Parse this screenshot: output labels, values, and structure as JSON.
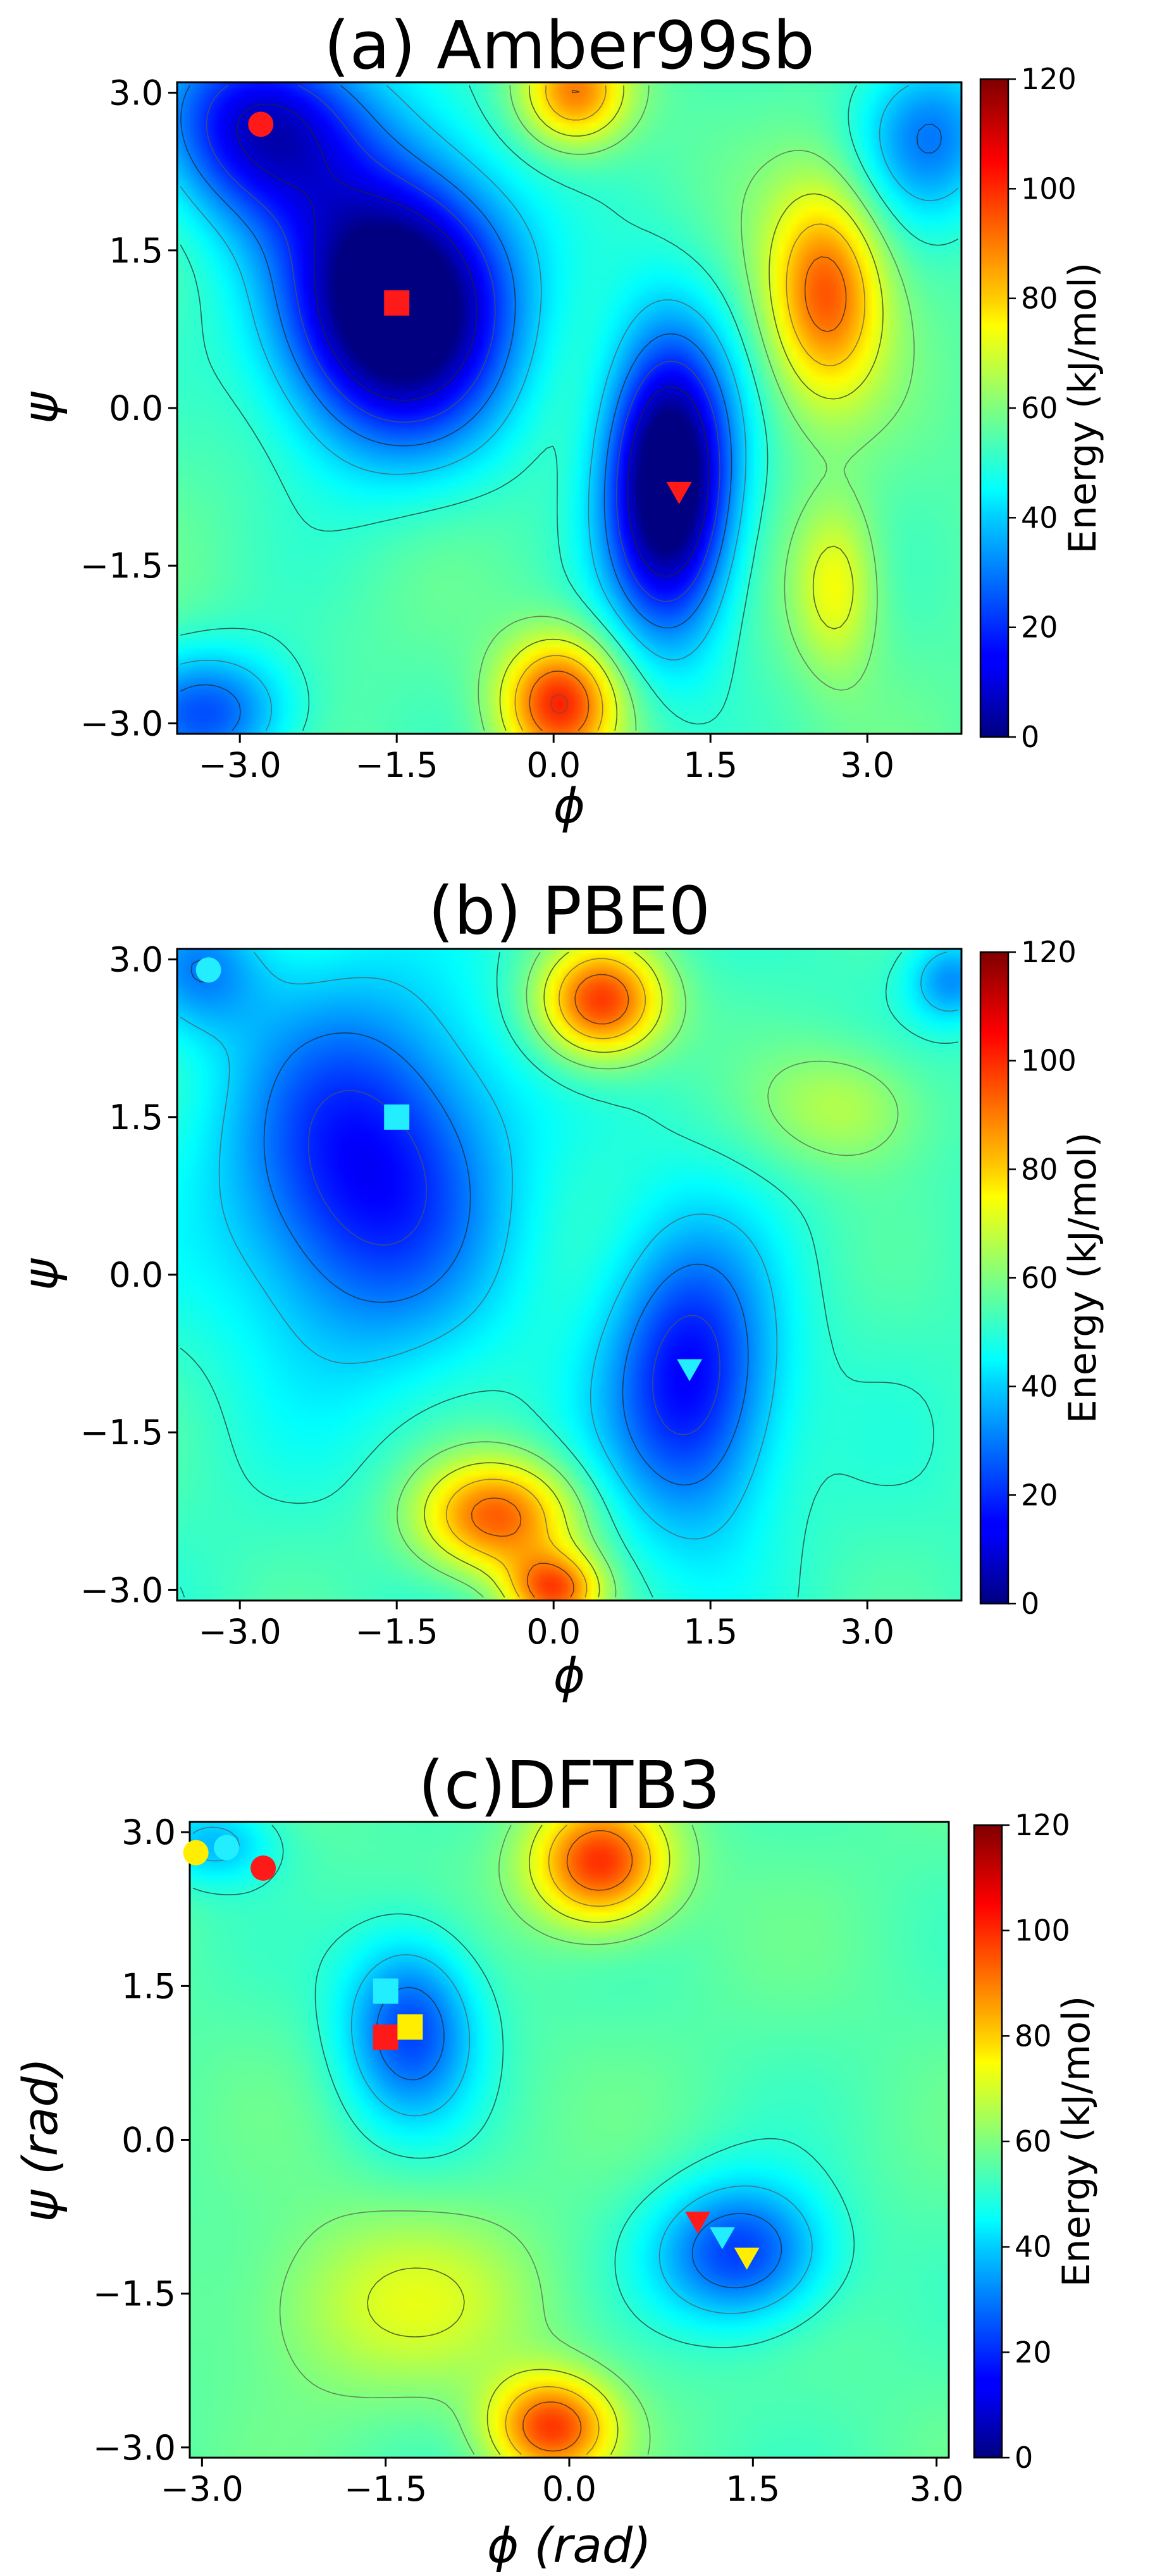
{
  "chart_data": [
    {
      "type": "heatmap",
      "title": "(a) Amber99sb",
      "xlabel": "ϕ",
      "ylabel": "ψ",
      "x_ticks": [
        "−3.0",
        "−1.5",
        "0.0",
        "1.5",
        "3.0"
      ],
      "y_ticks": [
        "3.0",
        "1.5",
        "0.0",
        "−1.5",
        "−3.0"
      ],
      "x_tick_values": [
        -3.0,
        -1.5,
        0.0,
        1.5,
        3.0
      ],
      "y_tick_values": [
        3.0,
        1.5,
        0.0,
        -1.5,
        -3.0
      ],
      "xlim": [
        -3.6,
        3.9
      ],
      "ylim": [
        -3.1,
        3.1
      ],
      "colorbar": {
        "label": "Energy (kJ/mol)",
        "ticks": [
          "0",
          "20",
          "40",
          "60",
          "80",
          "100",
          "120"
        ],
        "range": [
          0,
          120
        ]
      },
      "energy_wells": [
        {
          "phi": -1.5,
          "psi": 1.0,
          "depth": 72,
          "sx": 1.1,
          "sy": 1.3
        },
        {
          "phi": -2.8,
          "psi": 2.7,
          "depth": 45,
          "sx": 1.0,
          "sy": 0.9
        },
        {
          "phi": 1.1,
          "psi": -0.7,
          "depth": 68,
          "sx": 0.6,
          "sy": 1.4
        },
        {
          "phi": -3.3,
          "psi": -2.9,
          "depth": 30,
          "sx": 0.8,
          "sy": 0.6
        },
        {
          "phi": 3.6,
          "psi": 2.6,
          "depth": 25,
          "sx": 0.7,
          "sy": 0.8
        }
      ],
      "energy_peaks": [
        {
          "phi": 2.6,
          "psi": 1.1,
          "height": 40,
          "sx": 0.55,
          "sy": 1.0
        },
        {
          "phi": 0.05,
          "psi": -2.8,
          "height": 45,
          "sx": 0.55,
          "sy": 0.6
        },
        {
          "phi": 0.2,
          "psi": 3.0,
          "height": 35,
          "sx": 0.5,
          "sy": 0.5
        },
        {
          "phi": 2.7,
          "psi": -1.7,
          "height": 20,
          "sx": 0.4,
          "sy": 0.8
        }
      ],
      "baseline": 55,
      "markers": [
        {
          "shape": "circle",
          "color": "#ff1a1a",
          "phi": -2.8,
          "psi": 2.7
        },
        {
          "shape": "square",
          "color": "#ff1a1a",
          "phi": -1.5,
          "psi": 1.0
        },
        {
          "shape": "triangle",
          "color": "#ff1a1a",
          "phi": 1.2,
          "psi": -0.8
        }
      ]
    },
    {
      "type": "heatmap",
      "title": "(b) PBE0",
      "xlabel": "ϕ",
      "ylabel": "ψ",
      "x_ticks": [
        "−3.0",
        "−1.5",
        "0.0",
        "1.5",
        "3.0"
      ],
      "y_ticks": [
        "3.0",
        "1.5",
        "0.0",
        "−1.5",
        "−3.0"
      ],
      "x_tick_values": [
        -3.0,
        -1.5,
        0.0,
        1.5,
        3.0
      ],
      "y_tick_values": [
        3.0,
        1.5,
        0.0,
        -1.5,
        -3.0
      ],
      "xlim": [
        -3.6,
        3.9
      ],
      "ylim": [
        -3.1,
        3.1
      ],
      "colorbar": {
        "label": "Energy (kJ/mol)",
        "ticks": [
          "0",
          "20",
          "40",
          "60",
          "80",
          "100",
          "120"
        ],
        "range": [
          0,
          120
        ]
      },
      "energy_wells": [
        {
          "phi": -1.8,
          "psi": 1.0,
          "depth": 38,
          "sx": 1.3,
          "sy": 1.7
        },
        {
          "phi": 1.3,
          "psi": -1.0,
          "depth": 38,
          "sx": 0.8,
          "sy": 1.4
        },
        {
          "phi": -3.4,
          "psi": 2.9,
          "depth": 20,
          "sx": 0.6,
          "sy": 0.6
        },
        {
          "phi": 3.8,
          "psi": 2.8,
          "depth": 20,
          "sx": 0.4,
          "sy": 0.4
        }
      ],
      "energy_peaks": [
        {
          "phi": 0.45,
          "psi": 2.6,
          "height": 48,
          "sx": 0.6,
          "sy": 0.55
        },
        {
          "phi": -0.55,
          "psi": -2.3,
          "height": 42,
          "sx": 0.75,
          "sy": 0.55
        },
        {
          "phi": 0.0,
          "psi": -3.0,
          "height": 40,
          "sx": 0.45,
          "sy": 0.35
        },
        {
          "phi": 2.8,
          "psi": 1.6,
          "height": 15,
          "sx": 0.8,
          "sy": 0.6
        }
      ],
      "baseline": 52,
      "markers": [
        {
          "shape": "circle",
          "color": "#22eeff",
          "phi": -3.3,
          "psi": 2.9
        },
        {
          "shape": "square",
          "color": "#22eeff",
          "phi": -1.5,
          "psi": 1.5
        },
        {
          "shape": "triangle",
          "color": "#22eeff",
          "phi": 1.3,
          "psi": -0.9
        }
      ]
    },
    {
      "type": "heatmap",
      "title": "(c)DFTB3",
      "xlabel": "ϕ (rad)",
      "ylabel": "ψ (rad)",
      "x_ticks": [
        "−3.0",
        "−1.5",
        "0.0",
        "1.5",
        "3.0"
      ],
      "y_ticks": [
        "3.0",
        "1.5",
        "0.0",
        "−1.5",
        "−3.0"
      ],
      "x_tick_values": [
        -3.0,
        -1.5,
        0.0,
        1.5,
        3.0
      ],
      "y_tick_values": [
        3.0,
        1.5,
        0.0,
        -1.5,
        -3.0
      ],
      "xlim": [
        -3.1,
        3.1
      ],
      "ylim": [
        -3.1,
        3.1
      ],
      "colorbar": {
        "label": "Energy (kJ/mol)",
        "ticks": [
          "0",
          "20",
          "40",
          "60",
          "80",
          "100",
          "120"
        ],
        "range": [
          0,
          120
        ]
      },
      "energy_wells": [
        {
          "phi": -1.3,
          "psi": 1.1,
          "depth": 32,
          "sx": 0.55,
          "sy": 0.9
        },
        {
          "phi": 1.4,
          "psi": -1.1,
          "depth": 34,
          "sx": 0.7,
          "sy": 0.7
        },
        {
          "phi": -2.9,
          "psi": 2.9,
          "depth": 18,
          "sx": 0.5,
          "sy": 0.4
        }
      ],
      "energy_peaks": [
        {
          "phi": 0.25,
          "psi": 2.7,
          "height": 45,
          "sx": 0.55,
          "sy": 0.6
        },
        {
          "phi": -0.15,
          "psi": -2.8,
          "height": 42,
          "sx": 0.5,
          "sy": 0.5
        },
        {
          "phi": -1.4,
          "psi": -1.6,
          "height": 15,
          "sx": 1.2,
          "sy": 0.9
        }
      ],
      "baseline": 55,
      "markers": [
        {
          "shape": "circle",
          "color": "#ffee00",
          "phi": -3.05,
          "psi": 2.8
        },
        {
          "shape": "circle",
          "color": "#22eeff",
          "phi": -2.8,
          "psi": 2.85
        },
        {
          "shape": "circle",
          "color": "#ff1a1a",
          "phi": -2.5,
          "psi": 2.65
        },
        {
          "shape": "square",
          "color": "#22eeff",
          "phi": -1.5,
          "psi": 1.45
        },
        {
          "shape": "square",
          "color": "#ff1a1a",
          "phi": -1.5,
          "psi": 1.0
        },
        {
          "shape": "square",
          "color": "#ffee00",
          "phi": -1.3,
          "psi": 1.1
        },
        {
          "shape": "triangle",
          "color": "#ff1a1a",
          "phi": 1.05,
          "psi": -0.8
        },
        {
          "shape": "triangle",
          "color": "#22eeff",
          "phi": 1.25,
          "psi": -0.95
        },
        {
          "shape": "triangle",
          "color": "#ffee00",
          "phi": 1.45,
          "psi": -1.15
        }
      ]
    }
  ]
}
